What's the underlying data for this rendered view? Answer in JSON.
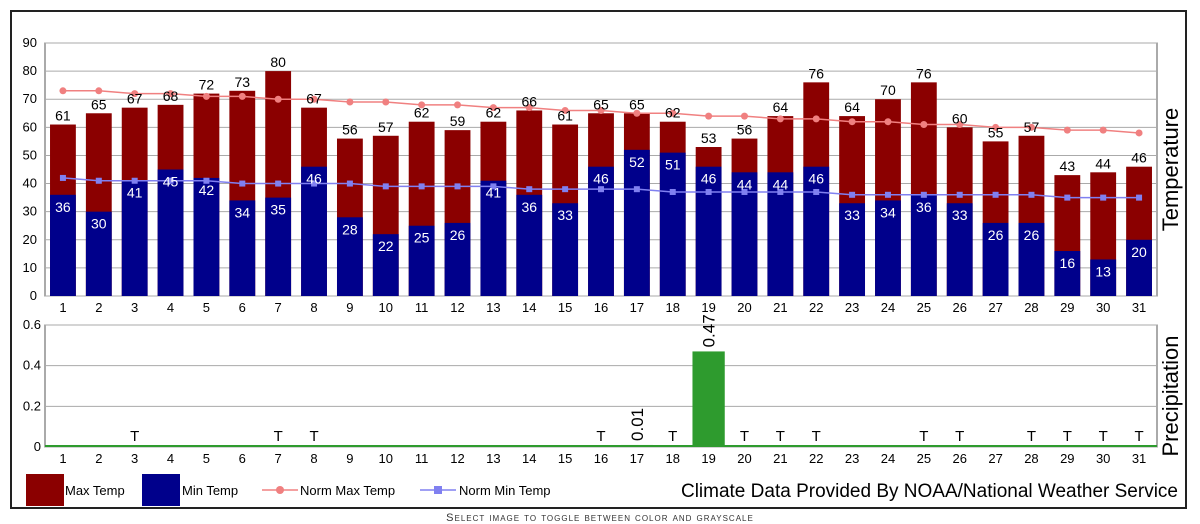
{
  "chart_data": [
    {
      "type": "bar",
      "name": "temperature",
      "ylabel": "Temperature",
      "ylim": [
        0,
        90
      ],
      "yticks": [
        0,
        10,
        20,
        30,
        40,
        50,
        60,
        70,
        80,
        90
      ],
      "categories": [
        "1",
        "2",
        "3",
        "4",
        "5",
        "6",
        "7",
        "8",
        "9",
        "10",
        "11",
        "12",
        "13",
        "14",
        "15",
        "16",
        "17",
        "18",
        "19",
        "20",
        "21",
        "22",
        "23",
        "24",
        "25",
        "26",
        "27",
        "28",
        "29",
        "30",
        "31"
      ],
      "grid": true,
      "series": [
        {
          "name": "Max Temp",
          "type": "bar",
          "color": "#8b0000",
          "values": [
            61,
            65,
            67,
            68,
            72,
            73,
            80,
            67,
            56,
            57,
            62,
            59,
            62,
            66,
            61,
            65,
            65,
            62,
            53,
            56,
            64,
            76,
            64,
            70,
            76,
            60,
            55,
            57,
            43,
            44,
            46
          ]
        },
        {
          "name": "Min Temp",
          "type": "bar",
          "color": "#00008b",
          "values": [
            36,
            30,
            41,
            45,
            42,
            34,
            35,
            46,
            28,
            22,
            25,
            26,
            41,
            36,
            33,
            46,
            52,
            51,
            46,
            44,
            44,
            46,
            33,
            34,
            36,
            33,
            26,
            26,
            16,
            13,
            20
          ]
        },
        {
          "name": "Norm Max Temp",
          "type": "line",
          "color": "#f08080",
          "values": [
            73,
            73,
            72,
            72,
            71,
            71,
            70,
            70,
            69,
            69,
            68,
            68,
            67,
            67,
            66,
            66,
            65,
            65,
            64,
            64,
            63,
            63,
            62,
            62,
            61,
            61,
            60,
            60,
            59,
            59,
            58
          ]
        },
        {
          "name": "Norm Min Temp",
          "type": "line",
          "color": "#8080f0",
          "values": [
            42,
            41,
            41,
            41,
            41,
            40,
            40,
            40,
            40,
            39,
            39,
            39,
            39,
            38,
            38,
            38,
            38,
            37,
            37,
            37,
            37,
            37,
            36,
            36,
            36,
            36,
            36,
            36,
            35,
            35,
            35
          ]
        }
      ]
    },
    {
      "type": "bar",
      "name": "precipitation",
      "ylabel": "Precipitation",
      "ylim": [
        0,
        0.6
      ],
      "yticks": [
        "0",
        "0.2",
        "0.4",
        "0.6"
      ],
      "categories": [
        "1",
        "2",
        "3",
        "4",
        "5",
        "6",
        "7",
        "8",
        "9",
        "10",
        "11",
        "12",
        "13",
        "14",
        "15",
        "16",
        "17",
        "18",
        "19",
        "20",
        "21",
        "22",
        "23",
        "24",
        "25",
        "26",
        "27",
        "28",
        "29",
        "30",
        "31"
      ],
      "grid": true,
      "color": "#2e9b2e",
      "values": [
        0,
        0,
        0,
        0,
        0,
        0,
        0,
        0,
        0,
        0,
        0,
        0,
        0,
        0,
        0,
        0,
        0.01,
        0,
        0.47,
        0,
        0,
        0,
        0,
        0,
        0,
        0,
        0,
        0,
        0,
        0,
        0
      ],
      "trace_marker": "T",
      "trace_days": [
        "3",
        "7",
        "8",
        "16",
        "18",
        "20",
        "21",
        "22",
        "25",
        "26",
        "28",
        "29",
        "30",
        "31"
      ],
      "value_labels": {
        "17": "0.01",
        "19": "0.47"
      }
    }
  ],
  "legend": {
    "items": [
      {
        "label": "Max Temp",
        "color": "#8b0000",
        "kind": "box"
      },
      {
        "label": "Min Temp",
        "color": "#00008b",
        "kind": "box"
      },
      {
        "label": "Norm Max Temp",
        "color": "#f08080",
        "kind": "line"
      },
      {
        "label": "Norm Min Temp",
        "color": "#8080f0",
        "kind": "line"
      }
    ]
  },
  "credit": "Climate Data Provided By NOAA/National Weather Service",
  "footer_note": "Select image to toggle between color and grayscale"
}
